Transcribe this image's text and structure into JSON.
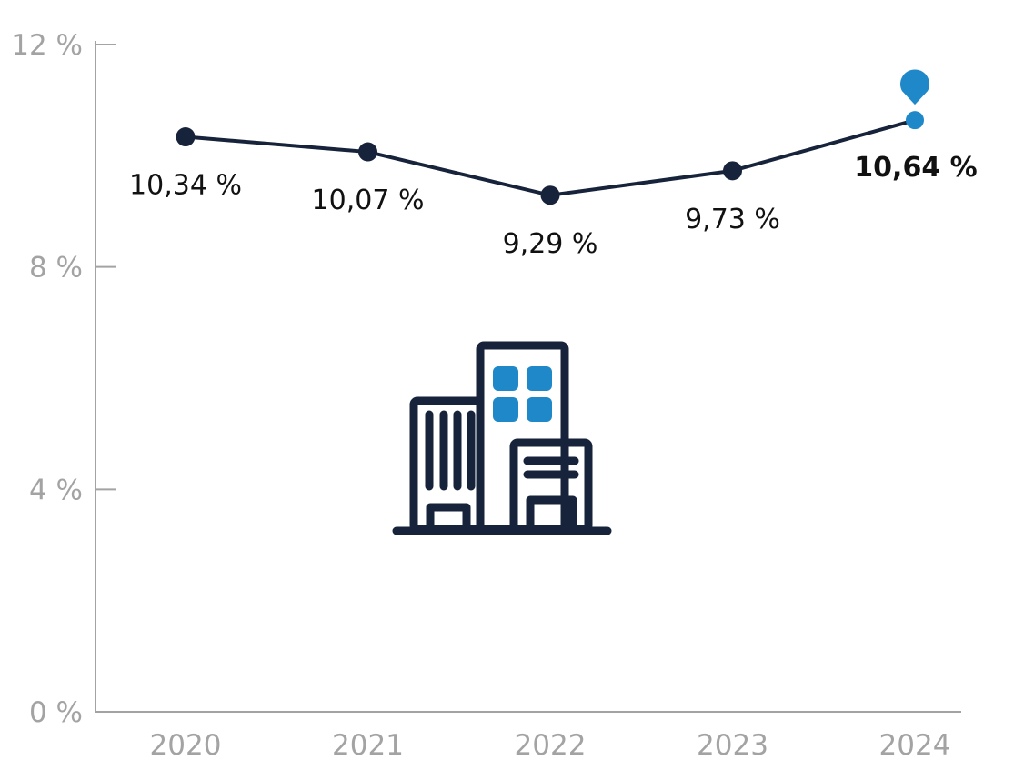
{
  "chart_data": {
    "type": "line",
    "categories": [
      "2020",
      "2021",
      "2022",
      "2023",
      "2024"
    ],
    "series": [
      {
        "values": [
          10.34,
          10.07,
          9.29,
          9.73,
          10.64
        ]
      }
    ],
    "data_labels": [
      "10,34 %",
      "10,07 %",
      "9,29 %",
      "9,73 %",
      "10,64 %"
    ],
    "y_ticks": [
      0,
      4,
      8,
      12
    ],
    "y_tick_labels": [
      "0 %",
      "4 %",
      "8 %",
      "12 %"
    ],
    "ylim": [
      0,
      12
    ],
    "grid": false,
    "highlight_index": 4,
    "title": "",
    "xlabel": "",
    "ylabel": ""
  },
  "colors": {
    "line": "#16233a",
    "highlight": "#1f88c9",
    "axis": "#a3a3a3",
    "label": "#111111"
  },
  "icons": {
    "building": "office-building-icon",
    "marker": "location-pin-icon"
  }
}
